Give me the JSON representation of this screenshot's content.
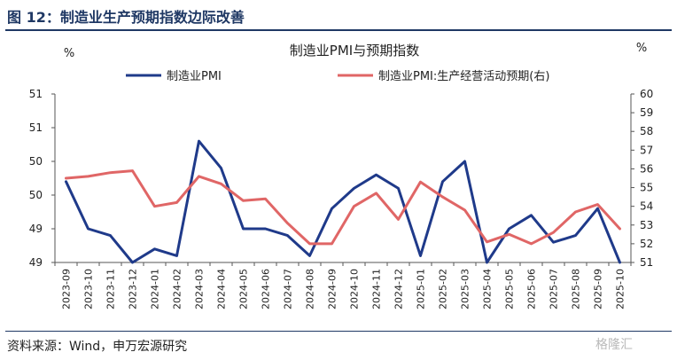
{
  "header": {
    "figure_title": "图 12：制造业生产预期指数边际改善"
  },
  "footer": {
    "source": "资料来源：Wind，申万宏源研究",
    "watermark": "格隆汇"
  },
  "chart_data": {
    "type": "line",
    "title": "制造业PMI与预期指数",
    "left_unit": "%",
    "right_unit": "%",
    "categories": [
      "2023-09",
      "2023-10",
      "2023-11",
      "2023-12",
      "2024-01",
      "2024-02",
      "2024-03",
      "2024-04",
      "2024-05",
      "2024-06",
      "2024-07",
      "2024-08",
      "2024-09",
      "2024-10",
      "2024-11",
      "2024-12",
      "2025-01",
      "2025-02",
      "2025-03",
      "2025-04",
      "2025-05",
      "2025-06",
      "2025-07",
      "2025-08",
      "2025-09",
      "2025-10"
    ],
    "left_axis": {
      "min": 49.0,
      "max": 51.5,
      "ticks": [
        49.0,
        49.5,
        50.0,
        50.5,
        51.0,
        51.5
      ],
      "tick_labels": [
        "49",
        "49",
        "50",
        "50",
        "51",
        "51"
      ]
    },
    "right_axis": {
      "min": 51,
      "max": 60,
      "ticks": [
        51,
        52,
        53,
        54,
        55,
        56,
        57,
        58,
        59,
        60
      ],
      "tick_labels": [
        "51",
        "52",
        "53",
        "54",
        "55",
        "56",
        "57",
        "58",
        "59",
        "60"
      ]
    },
    "series": [
      {
        "name": "制造业PMI",
        "axis": "left",
        "color": "#1f3a8a",
        "values": [
          50.2,
          49.5,
          49.4,
          49.0,
          49.2,
          49.1,
          50.8,
          50.4,
          49.5,
          49.5,
          49.4,
          49.1,
          49.8,
          50.1,
          50.3,
          50.1,
          49.1,
          50.2,
          50.5,
          49.0,
          49.5,
          49.7,
          49.3,
          49.4,
          49.8,
          49.0
        ]
      },
      {
        "name": "制造业PMI:生产经营活动预期(右)",
        "axis": "right",
        "color": "#e06666",
        "values": [
          55.5,
          55.6,
          55.8,
          55.9,
          54.0,
          54.2,
          55.6,
          55.2,
          54.3,
          54.4,
          53.1,
          52.0,
          52.0,
          54.0,
          54.7,
          53.3,
          55.3,
          54.5,
          53.8,
          52.1,
          52.5,
          52.0,
          52.6,
          53.7,
          54.1,
          52.8
        ]
      }
    ]
  }
}
